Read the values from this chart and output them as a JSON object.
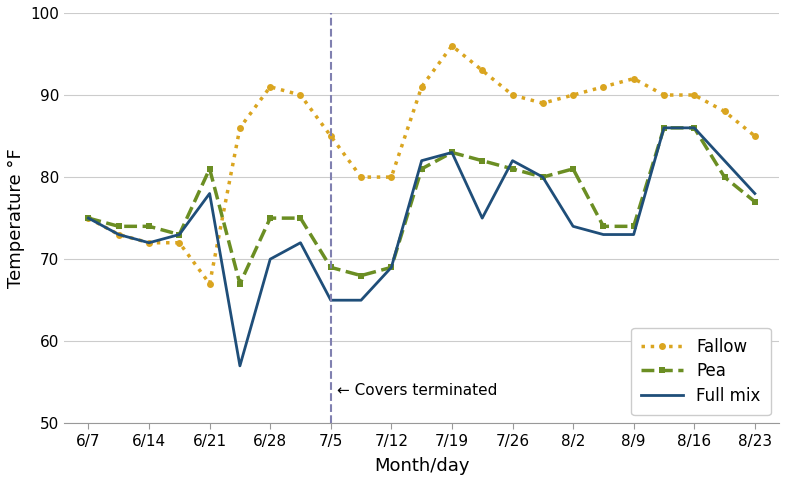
{
  "x_labels": [
    "6/7",
    "6/14",
    "6/21",
    "6/28",
    "7/5",
    "7/12",
    "7/19",
    "7/26",
    "8/2",
    "8/9",
    "8/16",
    "8/23"
  ],
  "x_tick_pos": [
    0,
    1,
    2,
    3,
    4,
    5,
    6,
    7,
    8,
    9,
    10,
    11
  ],
  "fallow_x": [
    0,
    0.5,
    1,
    1.5,
    2,
    2.5,
    3,
    3.5,
    4,
    4.5,
    5,
    5.5,
    6,
    6.5,
    7,
    7.5,
    8,
    8.5,
    9,
    9.5,
    10,
    10.5,
    11
  ],
  "fallow_y": [
    75,
    73,
    72,
    72,
    67,
    86,
    91,
    90,
    85,
    80,
    80,
    91,
    96,
    93,
    90,
    89,
    90,
    91,
    92,
    90,
    90,
    88,
    85
  ],
  "pea_x": [
    0,
    0.5,
    1,
    1.5,
    2,
    2.5,
    3,
    3.5,
    4,
    4.5,
    5,
    5.5,
    6,
    6.5,
    7,
    7.5,
    8,
    8.5,
    9,
    9.5,
    10,
    10.5,
    11
  ],
  "pea_y": [
    75,
    74,
    74,
    73,
    81,
    67,
    75,
    75,
    69,
    68,
    69,
    81,
    83,
    82,
    81,
    80,
    81,
    74,
    74,
    86,
    86,
    80,
    77
  ],
  "mix_x": [
    0,
    0.5,
    1,
    1.5,
    2,
    2.5,
    3,
    3.5,
    4,
    4.5,
    5,
    5.5,
    6,
    6.5,
    7,
    7.5,
    8,
    8.5,
    9,
    9.5,
    10,
    10.5,
    11
  ],
  "mix_y": [
    75,
    73,
    72,
    73,
    78,
    57,
    70,
    72,
    65,
    65,
    69,
    82,
    83,
    75,
    82,
    80,
    74,
    73,
    73,
    86,
    86,
    82,
    78
  ],
  "fallow_color": "#DAA520",
  "pea_color": "#6B8E23",
  "mix_color": "#1F4E79",
  "vline_x": 4,
  "vline_color": "#8080B0",
  "annotation_text": "← Covers terminated",
  "ylabel": "Temperature °F",
  "xlabel": "Month/day",
  "ylim": [
    50,
    100
  ],
  "yticks": [
    50,
    60,
    70,
    80,
    90,
    100
  ],
  "axis_fontsize": 13,
  "tick_fontsize": 11,
  "legend_fontsize": 12,
  "background_color": "#ffffff"
}
